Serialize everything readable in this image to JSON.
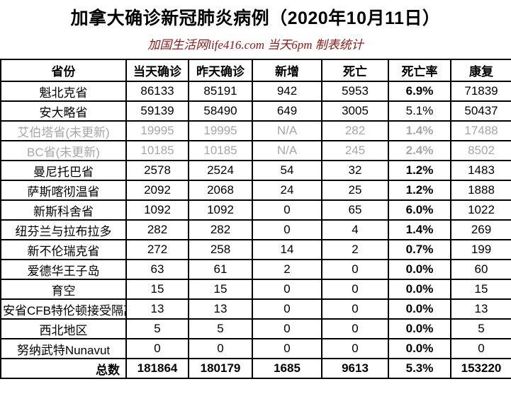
{
  "title": "加拿大确诊新冠肺炎病例（2020年10月11日）",
  "subtitle": "加国生活网life416.com 当天6pm 制表统计",
  "colors": {
    "highlight_red": "#FF0000",
    "subtitle_dark_red": "#8B1A1A",
    "not_updated_gray": "#A6A6A6",
    "text_black": "#000000",
    "background": "#FFFFFF"
  },
  "table": {
    "headers": [
      "省份",
      "当天确诊",
      "昨天确诊",
      "新增",
      "死亡",
      "死亡率",
      "康复"
    ],
    "rows": [
      {
        "province": "魁北克省",
        "today": "86133",
        "yesterday": "85191",
        "new_cases": "942",
        "deaths": "5953",
        "death_rate": "6.9%",
        "recovered": "71839",
        "grayed": false,
        "small": false,
        "new_red": true,
        "rate_red": true,
        "rate_bold": true
      },
      {
        "province": "安大略省",
        "today": "59139",
        "yesterday": "58490",
        "new_cases": "649",
        "deaths": "3005",
        "death_rate": "5.1%",
        "recovered": "50437",
        "grayed": false,
        "small": false,
        "new_red": false,
        "rate_red": false,
        "rate_bold": false
      },
      {
        "province": "艾伯塔省(未更新)",
        "today": "19995",
        "yesterday": "19995",
        "new_cases": "N/A",
        "deaths": "282",
        "death_rate": "1.4%",
        "recovered": "17488",
        "grayed": true,
        "small": false,
        "new_red": false,
        "rate_red": false,
        "rate_bold": true
      },
      {
        "province": "BC省(未更新)",
        "today": "10185",
        "yesterday": "10185",
        "new_cases": "N/A",
        "deaths": "245",
        "death_rate": "2.4%",
        "recovered": "8502",
        "grayed": true,
        "small": false,
        "new_red": false,
        "rate_red": false,
        "rate_bold": true
      },
      {
        "province": "曼尼托巴省",
        "today": "2578",
        "yesterday": "2524",
        "new_cases": "54",
        "deaths": "32",
        "death_rate": "1.2%",
        "recovered": "1483",
        "grayed": false,
        "small": false,
        "new_red": false,
        "rate_red": false,
        "rate_bold": true
      },
      {
        "province": "萨斯喀彻温省",
        "today": "2092",
        "yesterday": "2068",
        "new_cases": "24",
        "deaths": "25",
        "death_rate": "1.2%",
        "recovered": "1888",
        "grayed": false,
        "small": false,
        "new_red": false,
        "rate_red": false,
        "rate_bold": true
      },
      {
        "province": "新斯科舍省",
        "today": "1092",
        "yesterday": "1092",
        "new_cases": "0",
        "deaths": "65",
        "death_rate": "6.0%",
        "recovered": "1022",
        "grayed": false,
        "small": false,
        "new_red": false,
        "rate_red": false,
        "rate_bold": true
      },
      {
        "province": "纽芬兰与拉布拉多",
        "today": "282",
        "yesterday": "282",
        "new_cases": "0",
        "deaths": "4",
        "death_rate": "1.4%",
        "recovered": "269",
        "grayed": false,
        "small": false,
        "new_red": false,
        "rate_red": false,
        "rate_bold": true
      },
      {
        "province": "新不伦瑞克省",
        "today": "272",
        "yesterday": "258",
        "new_cases": "14",
        "deaths": "2",
        "death_rate": "0.7%",
        "recovered": "199",
        "grayed": false,
        "small": false,
        "new_red": false,
        "rate_red": false,
        "rate_bold": true
      },
      {
        "province": "爱德华王子岛",
        "today": "63",
        "yesterday": "61",
        "new_cases": "2",
        "deaths": "0",
        "death_rate": "0.0%",
        "recovered": "60",
        "grayed": false,
        "small": false,
        "new_red": false,
        "rate_red": false,
        "rate_bold": true
      },
      {
        "province": "育空",
        "today": "15",
        "yesterday": "15",
        "new_cases": "0",
        "deaths": "0",
        "death_rate": "0.0%",
        "recovered": "15",
        "grayed": false,
        "small": false,
        "new_red": false,
        "rate_red": false,
        "rate_bold": true
      },
      {
        "province": "安省CFB特伦顿接受隔离",
        "today": "13",
        "yesterday": "13",
        "new_cases": "0",
        "deaths": "0",
        "death_rate": "0.0%",
        "recovered": "13",
        "grayed": false,
        "small": true,
        "new_red": false,
        "rate_red": false,
        "rate_bold": true
      },
      {
        "province": "西北地区",
        "today": "5",
        "yesterday": "5",
        "new_cases": "0",
        "deaths": "0",
        "death_rate": "0.0%",
        "recovered": "5",
        "grayed": false,
        "small": false,
        "new_red": false,
        "rate_red": false,
        "rate_bold": true
      },
      {
        "province": "努纳武特Nunavut",
        "today": "0",
        "yesterday": "0",
        "new_cases": "0",
        "deaths": "0",
        "death_rate": "0.0%",
        "recovered": "0",
        "grayed": false,
        "small": false,
        "new_red": false,
        "rate_red": false,
        "rate_bold": true
      }
    ],
    "total_row": {
      "label": "总数",
      "today": "181864",
      "yesterday": "180179",
      "new_cases": "1685",
      "deaths": "9613",
      "death_rate": "5.3%",
      "recovered": "153220"
    }
  },
  "chart_data": {
    "type": "table",
    "title": "加拿大确诊新冠肺炎病例（2020年10月11日）",
    "subtitle": "加国生活网life416.com 当天6pm 制表统计",
    "columns": [
      "省份",
      "当天确诊",
      "昨天确诊",
      "新增",
      "死亡",
      "死亡率",
      "康复"
    ],
    "rows": [
      [
        "魁北克省",
        86133,
        85191,
        942,
        5953,
        "6.9%",
        71839
      ],
      [
        "安大略省",
        59139,
        58490,
        649,
        3005,
        "5.1%",
        50437
      ],
      [
        "艾伯塔省(未更新)",
        19995,
        19995,
        "N/A",
        282,
        "1.4%",
        17488
      ],
      [
        "BC省(未更新)",
        10185,
        10185,
        "N/A",
        245,
        "2.4%",
        8502
      ],
      [
        "曼尼托巴省",
        2578,
        2524,
        54,
        32,
        "1.2%",
        1483
      ],
      [
        "萨斯喀彻温省",
        2092,
        2068,
        24,
        25,
        "1.2%",
        1888
      ],
      [
        "新斯科舍省",
        1092,
        1092,
        0,
        65,
        "6.0%",
        1022
      ],
      [
        "纽芬兰与拉布拉多",
        282,
        282,
        0,
        4,
        "1.4%",
        269
      ],
      [
        "新不伦瑞克省",
        272,
        258,
        14,
        2,
        "0.7%",
        199
      ],
      [
        "爱德华王子岛",
        63,
        61,
        2,
        0,
        "0.0%",
        60
      ],
      [
        "育空",
        15,
        15,
        0,
        0,
        "0.0%",
        15
      ],
      [
        "安省CFB特伦顿接受隔离",
        13,
        13,
        0,
        0,
        "0.0%",
        13
      ],
      [
        "西北地区",
        5,
        5,
        0,
        0,
        "0.0%",
        5
      ],
      [
        "努纳武特Nunavut",
        0,
        0,
        0,
        0,
        "0.0%",
        0
      ],
      [
        "总数",
        181864,
        180179,
        1685,
        9613,
        "5.3%",
        153220
      ]
    ]
  }
}
